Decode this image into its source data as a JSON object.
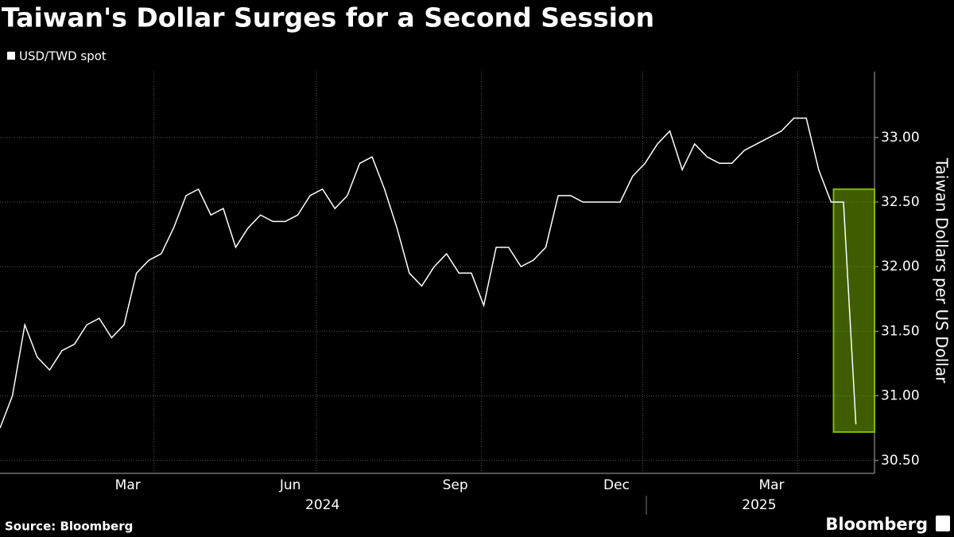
{
  "chart_data": {
    "type": "line",
    "title": "Taiwan's Dollar Surges for a Second Session",
    "y_axis_label": "Taiwan Dollars per US Dollar",
    "source": "Source: Bloomberg",
    "brand": "Bloomberg",
    "categories": [
      null,
      null,
      null,
      null,
      null,
      null,
      null,
      null,
      null,
      null,
      null,
      null,
      null,
      null,
      null,
      null,
      null,
      null,
      null,
      null,
      null,
      null,
      null,
      null,
      null,
      null,
      null,
      null,
      null,
      null,
      null,
      null,
      null,
      null,
      null,
      null,
      null,
      null,
      null,
      null,
      null,
      null,
      null,
      null,
      null,
      null,
      null,
      null,
      null,
      null,
      null,
      null,
      null,
      null,
      null,
      null,
      null,
      null,
      null,
      null,
      null,
      null,
      null,
      null,
      null,
      null,
      null,
      null,
      null,
      null
    ],
    "series": [
      {
        "name": "USD/TWD spot",
        "color": "#ffffff",
        "values": [
          30.75,
          31.0,
          31.55,
          31.3,
          31.2,
          31.35,
          31.4,
          31.55,
          31.6,
          31.45,
          31.55,
          31.95,
          32.05,
          32.1,
          32.3,
          32.55,
          32.6,
          32.4,
          32.45,
          32.15,
          32.3,
          32.4,
          32.35,
          32.35,
          32.4,
          32.55,
          32.6,
          32.45,
          32.55,
          32.8,
          32.85,
          32.6,
          32.3,
          31.95,
          31.85,
          32.0,
          32.1,
          31.95,
          31.95,
          31.7,
          32.15,
          32.15,
          32.0,
          32.05,
          32.15,
          32.55,
          32.55,
          32.5,
          32.5,
          32.5,
          32.5,
          32.7,
          32.8,
          32.95,
          33.05,
          32.75,
          32.95,
          32.85,
          32.8,
          32.8,
          32.9,
          32.95,
          33.0,
          33.05,
          33.15,
          33.15,
          32.75,
          32.5,
          32.5,
          30.78
        ]
      }
    ],
    "xlim": [
      0,
      70.5
    ],
    "xticks": [
      {
        "value": 10.3,
        "label": "Mar"
      },
      {
        "value": 23.4,
        "label": "Jun"
      },
      {
        "value": 36.7,
        "label": "Sep"
      },
      {
        "value": 49.7,
        "label": "Dec"
      },
      {
        "value": 62.2,
        "label": "Mar"
      }
    ],
    "year_labels": [
      {
        "value": 26,
        "label": "2024"
      },
      {
        "value": 61.2,
        "label": "2025"
      }
    ],
    "ylim": [
      30.4,
      33.51
    ],
    "yticks": [
      {
        "value": 30.5,
        "label": "30.50"
      },
      {
        "value": 31,
        "label": "31.00"
      },
      {
        "value": 31.5,
        "label": "31.50"
      },
      {
        "value": 32,
        "label": "32.00"
      },
      {
        "value": 32.5,
        "label": "32.50"
      },
      {
        "value": 33,
        "label": "33.00"
      }
    ],
    "grid": true,
    "highlight": {
      "xlim": [
        67.2,
        70.5
      ],
      "ylim": [
        30.72,
        32.6
      ],
      "color": "#7fb800"
    }
  }
}
